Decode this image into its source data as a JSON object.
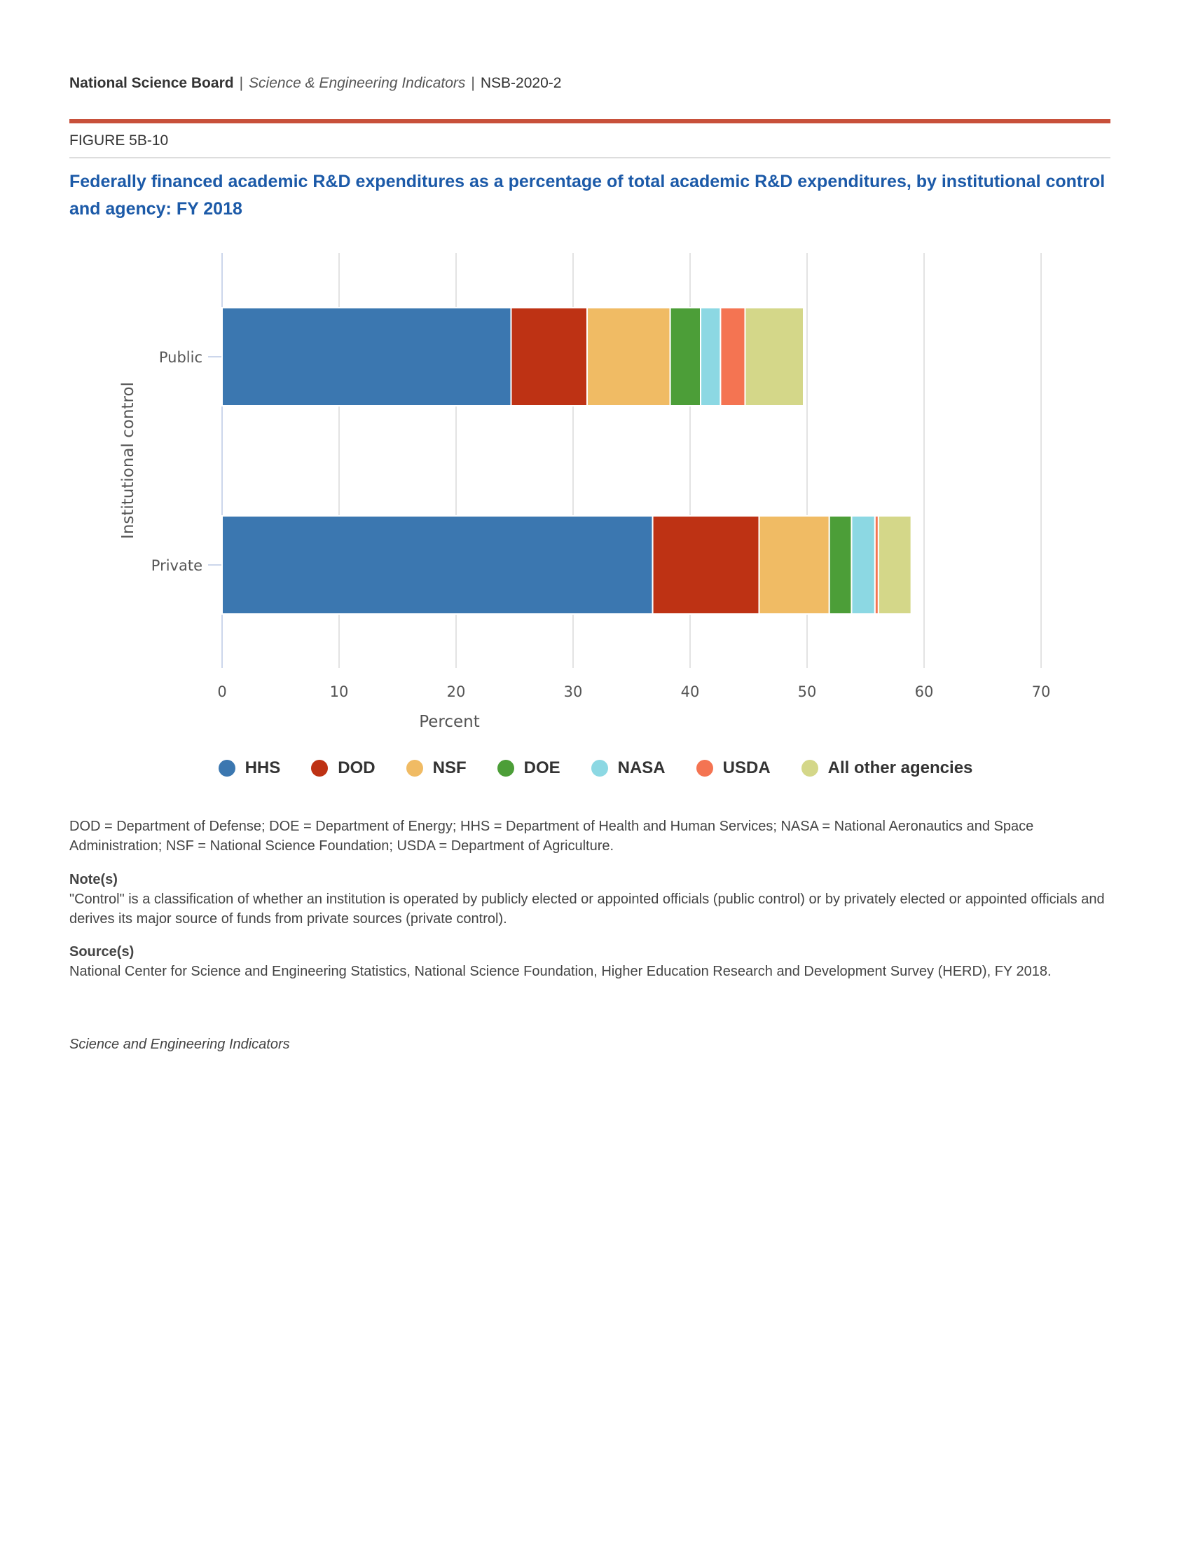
{
  "header": {
    "org": "National Science Board",
    "publication": "Science & Engineering Indicators",
    "report": "NSB-2020-2",
    "figure": "FIGURE 5B-10",
    "title": "Federally financed academic R&D expenditures as a percentage of total academic R&D expenditures, by institutional control and agency: FY 2018"
  },
  "chart_data": {
    "type": "bar",
    "orientation": "horizontal",
    "stacked": true,
    "title": "Federally financed academic R&D expenditures as a percentage of total academic R&D expenditures, by institutional control and agency: FY 2018",
    "xlabel": "Percent",
    "ylabel": "Institutional control",
    "xlim": [
      0,
      70
    ],
    "xticks": [
      "0",
      "10",
      "20",
      "30",
      "40",
      "50",
      "60",
      "70"
    ],
    "categories": [
      "Public",
      "Private"
    ],
    "grid": true,
    "legend_position": "bottom",
    "series": [
      {
        "name": "HHS",
        "color": "#3b77b0",
        "values": [
          24.7,
          36.8
        ]
      },
      {
        "name": "DOD",
        "color": "#be3214",
        "values": [
          6.5,
          9.1
        ]
      },
      {
        "name": "NSF",
        "color": "#f0bb64",
        "values": [
          7.1,
          6.0
        ]
      },
      {
        "name": "DOE",
        "color": "#4c9e38",
        "values": [
          2.6,
          1.9
        ]
      },
      {
        "name": "NASA",
        "color": "#8cd8e3",
        "values": [
          1.7,
          2.0
        ]
      },
      {
        "name": "USDA",
        "color": "#f47452",
        "values": [
          2.1,
          0.3
        ]
      },
      {
        "name": "All other agencies",
        "color": "#d4d789",
        "values": [
          5.0,
          2.8
        ]
      }
    ]
  },
  "notes": {
    "abbreviations": "DOD = Department of Defense; DOE = Department of Energy; HHS = Department of Health and Human Services; NASA = National Aeronautics and Space Administration; NSF = National Science Foundation; USDA = Department of Agriculture.",
    "note_heading": "Note(s)",
    "note": "\"Control\" is a classification of whether an institution is operated by publicly elected or appointed officials (public control) or by privately elected or appointed officials and derives its major source of funds from private sources (private control).",
    "source_heading": "Source(s)",
    "source": "National Center for Science and Engineering Statistics, National Science Foundation, Higher Education Research and Development Survey (HERD), FY 2018."
  },
  "footer": "Science and Engineering Indicators"
}
